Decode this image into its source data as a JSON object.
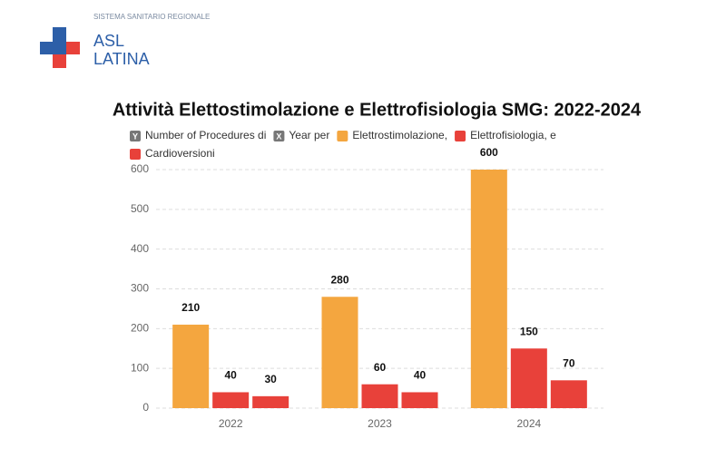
{
  "header": {
    "org": "SISTEMA SANITARIO REGIONALE",
    "name_line1": "ASL",
    "name_line2": "LATINA"
  },
  "chart_data": {
    "type": "bar",
    "title": "Attività Elettostimolazione e Elettrofisiologia SMG: 2022-2024",
    "legend_axis_items": [
      {
        "icon": "Y",
        "label": "Number of Procedures di"
      },
      {
        "icon": "X",
        "label": "Year per"
      }
    ],
    "categories": [
      "2022",
      "2023",
      "2024"
    ],
    "series": [
      {
        "name": "Elettrostimolazione,",
        "color": "#f4a63f",
        "values": [
          210,
          280,
          600
        ]
      },
      {
        "name": "Elettrofisiologia, e",
        "color": "#e8413a",
        "values": [
          40,
          60,
          150
        ]
      },
      {
        "name": "Cardioversioni",
        "color": "#e8413a",
        "values": [
          30,
          40,
          70
        ]
      }
    ],
    "ylim": [
      0,
      600
    ],
    "yticks": [
      0,
      100,
      200,
      300,
      400,
      500,
      600
    ],
    "grid": true
  }
}
